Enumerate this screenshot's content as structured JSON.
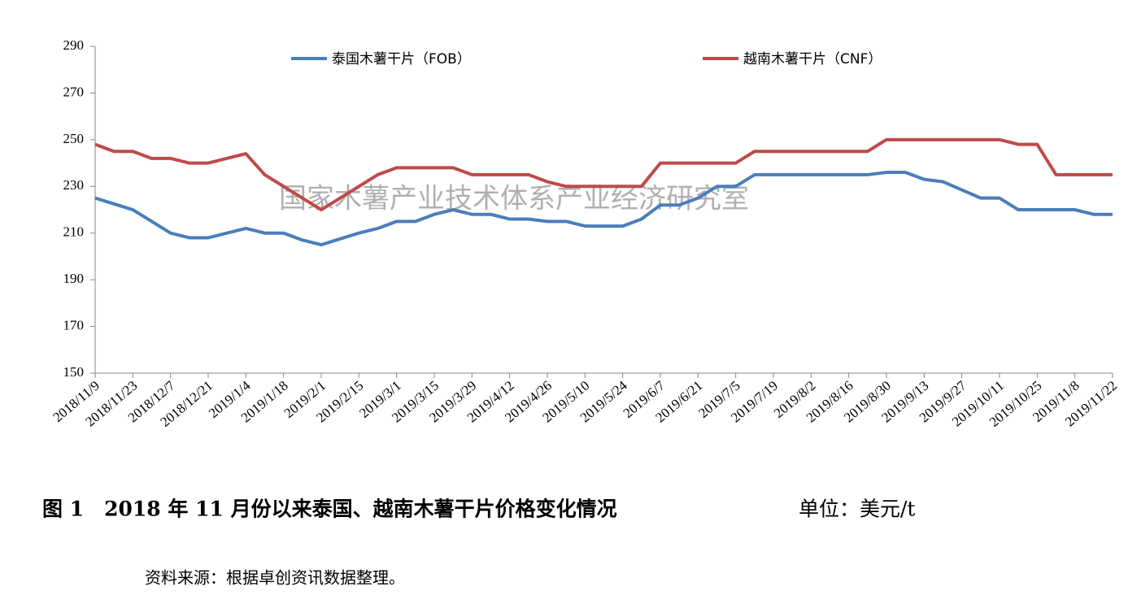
{
  "chart_data": {
    "type": "line",
    "categories": [
      "2018/11/9",
      null,
      "2018/11/23",
      null,
      "2018/12/7",
      null,
      "2018/12/21",
      null,
      "2019/1/4",
      null,
      "2019/1/18",
      null,
      "2019/2/1",
      null,
      "2019/2/15",
      null,
      "2019/3/1",
      null,
      "2019/3/15",
      null,
      "2019/3/29",
      null,
      "2019/4/12",
      null,
      "2019/4/26",
      null,
      "2019/5/10",
      null,
      "2019/5/24",
      null,
      "2019/6/7",
      null,
      "2019/6/21",
      null,
      "2019/7/5",
      null,
      "2019/7/19",
      null,
      "2019/8/2",
      null,
      "2019/8/16",
      null,
      "2019/8/30",
      null,
      "2019/9/13",
      null,
      "2019/9/27",
      null,
      "2019/10/11",
      null,
      "2019/10/25",
      null,
      "2019/11/8",
      null,
      "2019/11/22"
    ],
    "series": [
      {
        "name": "泰国木薯干片（FOB）",
        "color": "#4a7ebb",
        "values": [
          225,
          222.5,
          220,
          215,
          210,
          208,
          208,
          210,
          212,
          210,
          210,
          207,
          205,
          207.5,
          210,
          212,
          215,
          215,
          218,
          220,
          218,
          218,
          216,
          216,
          215,
          215,
          213,
          213,
          213,
          216,
          222,
          222,
          225,
          230,
          230,
          235,
          235,
          235,
          235,
          235,
          235,
          235,
          236,
          236,
          233,
          232,
          228.5,
          225,
          225,
          220,
          220,
          220,
          220,
          218,
          218
        ]
      },
      {
        "name": "越南木薯干片（CNF）",
        "color": "#be4b48",
        "values": [
          248,
          245,
          245,
          242,
          242,
          240,
          240,
          242,
          244,
          235,
          230,
          225,
          220,
          225,
          230,
          235,
          238,
          238,
          238,
          238,
          235,
          235,
          235,
          235,
          232,
          230,
          230,
          230,
          230,
          230,
          240,
          240,
          240,
          240,
          240,
          245,
          245,
          245,
          245,
          245,
          245,
          245,
          250,
          250,
          250,
          250,
          250,
          250,
          250,
          248,
          248,
          235,
          235,
          235,
          235
        ]
      }
    ],
    "ylim": [
      150,
      290
    ],
    "yticks": [
      150,
      170,
      190,
      210,
      230,
      250,
      270,
      290
    ],
    "watermark": "国家木薯产业技术体系产业经济研究室",
    "caption": "图 1　2018 年 11 月份以来泰国、越南木薯干片价格变化情况",
    "unit": "单位：美元/t",
    "source": "资料来源：根据卓创资讯数据整理。"
  }
}
